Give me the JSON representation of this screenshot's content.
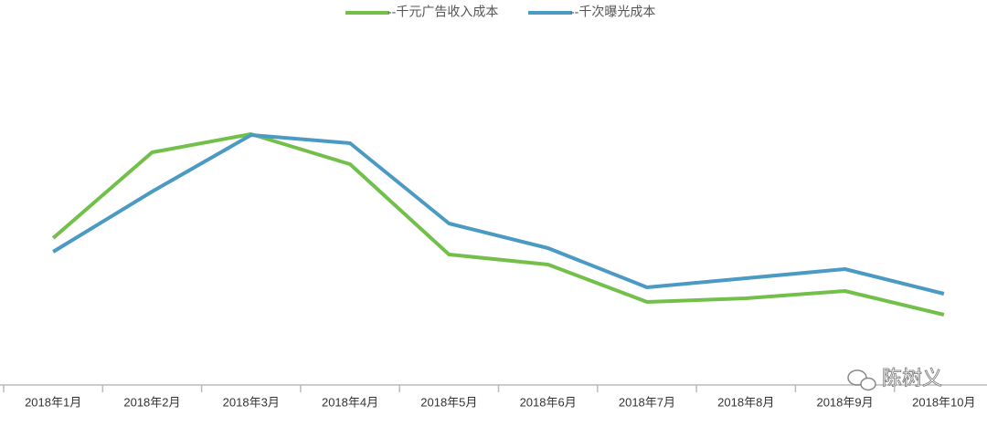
{
  "chart_data": {
    "type": "line",
    "categories": [
      "2018年1月",
      "2018年2月",
      "2018年3月",
      "2018年4月",
      "2018年5月",
      "2018年6月",
      "2018年7月",
      "2018年8月",
      "2018年9月",
      "2018年10月"
    ],
    "series": [
      {
        "name": "--千元广告收入成本",
        "color": "#72c04a",
        "values": [
          161,
          255,
          275,
          242,
          143,
          132,
          91,
          95,
          103,
          77
        ]
      },
      {
        "name": "--千次曝光成本",
        "color": "#4b9ac4",
        "values": [
          146,
          212,
          274,
          265,
          177,
          150,
          107,
          117,
          127,
          100
        ]
      }
    ],
    "ylim": [
      0,
      300
    ],
    "legend": "top",
    "watermark": "陈树义"
  }
}
